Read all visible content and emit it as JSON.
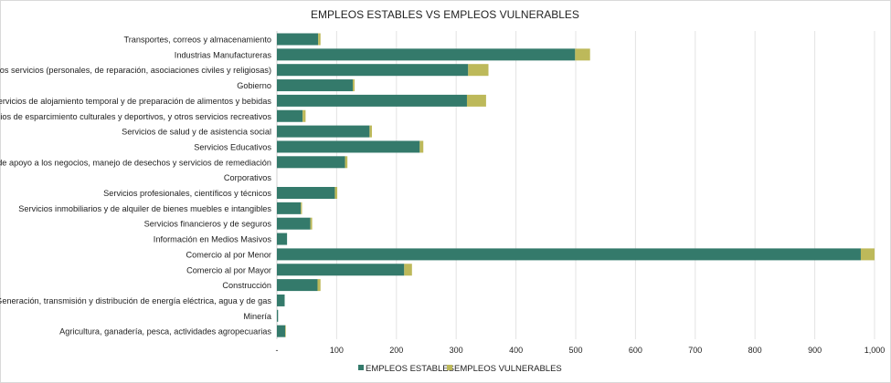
{
  "chart_data": {
    "type": "bar",
    "orientation": "horizontal",
    "stacked": true,
    "title": "EMPLEOS ESTABLES VS EMPLEOS VULNERABLES",
    "xlabel": "",
    "ylabel": "",
    "xlim": [
      0,
      1000
    ],
    "x_ticks": [
      0,
      100,
      200,
      300,
      400,
      500,
      600,
      700,
      800,
      900,
      1000
    ],
    "x_tick_labels": [
      "-",
      "100",
      "200",
      "300",
      "400",
      "500",
      "600",
      "700",
      "800",
      "900",
      "1,000"
    ],
    "grid": true,
    "legend_position": "bottom",
    "categories": [
      "Transportes, correos y almacenamiento",
      "Industrias Manufactureras",
      "Otros servicios (personales, de reparación, asociaciones civiles y religiosas)",
      "Gobierno",
      "Servicios de alojamiento temporal y de preparación de alimentos y bebidas",
      "Servicios de esparcimiento culturales y deportivos, y otros servicios recreativos",
      "Servicios de salud y de asistencia social",
      "Servicios Educativos",
      "Servicios de apoyo a los negocios, manejo de desechos y servicios de remediación",
      "Corporativos",
      "Servicios profesionales, científicos y técnicos",
      "Servicios inmobiliarios y de alquiler de bienes muebles e intangibles",
      "Servicios financieros y de seguros",
      "Información en Medios Masivos",
      "Comercio al por Menor",
      "Comercio al por Mayor",
      "Construcción",
      "Generación, transmisión y distribución de energía eléctrica, agua y de gas",
      "Minería",
      "Agricultura, ganadería, pesca, actividades agropecuarias"
    ],
    "series": [
      {
        "name": "EMPLEOS ESTABLES",
        "color": "#347a6b",
        "values": [
          69,
          499,
          320,
          127,
          318,
          43,
          155,
          239,
          114,
          0,
          97,
          40,
          56,
          17,
          977,
          213,
          68,
          13,
          2,
          14
        ]
      },
      {
        "name": "EMPLEOS VULNERABLES",
        "color": "#bdb95a",
        "values": [
          4,
          25,
          34,
          3,
          32,
          5,
          4,
          6,
          4,
          0,
          4,
          2,
          3,
          0,
          23,
          13,
          5,
          0,
          0,
          1
        ]
      }
    ]
  }
}
